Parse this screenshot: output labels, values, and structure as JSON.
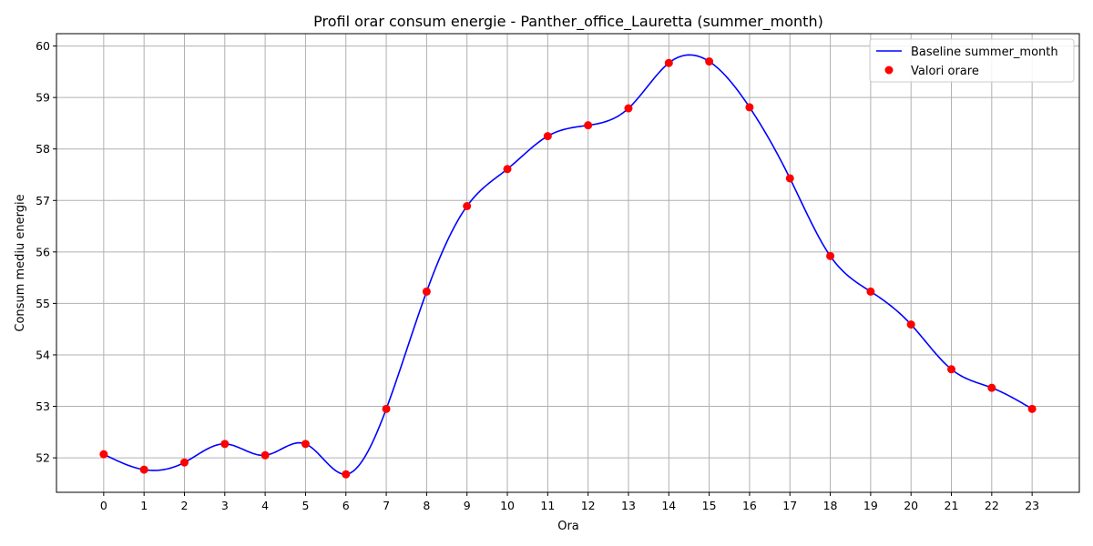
{
  "chart_data": {
    "type": "line",
    "title": "Profil orar consum energie - Panther_office_Lauretta (summer_month)",
    "xlabel": "Ora",
    "ylabel": "Consum mediu energie",
    "x": [
      0,
      1,
      2,
      3,
      4,
      5,
      6,
      7,
      8,
      9,
      10,
      11,
      12,
      13,
      14,
      15,
      16,
      17,
      18,
      19,
      20,
      21,
      22,
      23
    ],
    "xlim": [
      -1.17,
      24.17
    ],
    "ylim": [
      51.33,
      60.24
    ],
    "x_ticks": [
      0,
      1,
      2,
      3,
      4,
      5,
      6,
      7,
      8,
      9,
      10,
      11,
      12,
      13,
      14,
      15,
      16,
      17,
      18,
      19,
      20,
      21,
      22,
      23
    ],
    "y_ticks": [
      52,
      53,
      54,
      55,
      56,
      57,
      58,
      59,
      60
    ],
    "grid": true,
    "legend_position": "top-right",
    "series": [
      {
        "name": "Baseline summer_month",
        "kind": "line",
        "color": "#0000ff",
        "values": [
          52.07,
          51.77,
          51.91,
          52.27,
          52.05,
          52.27,
          51.68,
          52.95,
          55.23,
          56.89,
          57.61,
          58.25,
          58.46,
          58.79,
          59.67,
          59.7,
          58.81,
          57.43,
          55.92,
          55.23,
          54.59,
          53.72,
          53.36,
          52.95
        ]
      },
      {
        "name": "Valori orare",
        "kind": "scatter",
        "color": "#ff0000",
        "values": [
          52.07,
          51.77,
          51.91,
          52.27,
          52.05,
          52.27,
          51.68,
          52.95,
          55.23,
          56.89,
          57.61,
          58.25,
          58.46,
          58.79,
          59.67,
          59.7,
          58.81,
          57.43,
          55.92,
          55.23,
          54.59,
          53.72,
          53.36,
          52.95
        ]
      }
    ]
  }
}
